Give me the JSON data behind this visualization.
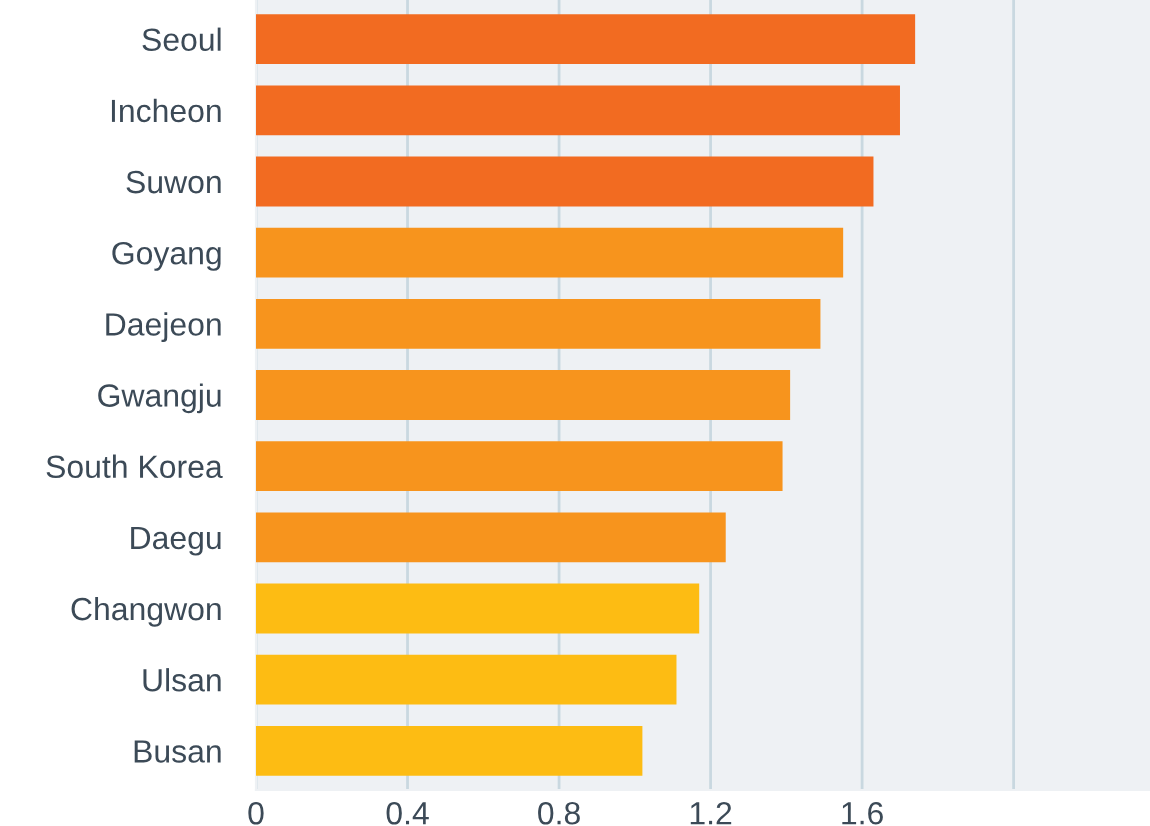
{
  "chart_data": {
    "type": "bar",
    "orientation": "horizontal",
    "categories": [
      "Seoul",
      "Incheon",
      "Suwon",
      "Goyang",
      "Daejeon",
      "Gwangju",
      "South Korea",
      "Daegu",
      "Changwon",
      "Ulsan",
      "Busan"
    ],
    "values": [
      1.74,
      1.7,
      1.63,
      1.55,
      1.49,
      1.41,
      1.39,
      1.24,
      1.17,
      1.11,
      1.02
    ],
    "colors": [
      "#f26b21",
      "#f26b21",
      "#f26b21",
      "#f7941d",
      "#f7941d",
      "#f7941d",
      "#f7941d",
      "#f7941d",
      "#fdbc13",
      "#fdbc13",
      "#fdbc13"
    ],
    "xlim": [
      0,
      2.36
    ],
    "xticks": [
      0,
      0.4,
      0.8,
      1.2,
      1.6,
      {
        "value": 2.0,
        "label": null
      }
    ],
    "grid": "x"
  }
}
